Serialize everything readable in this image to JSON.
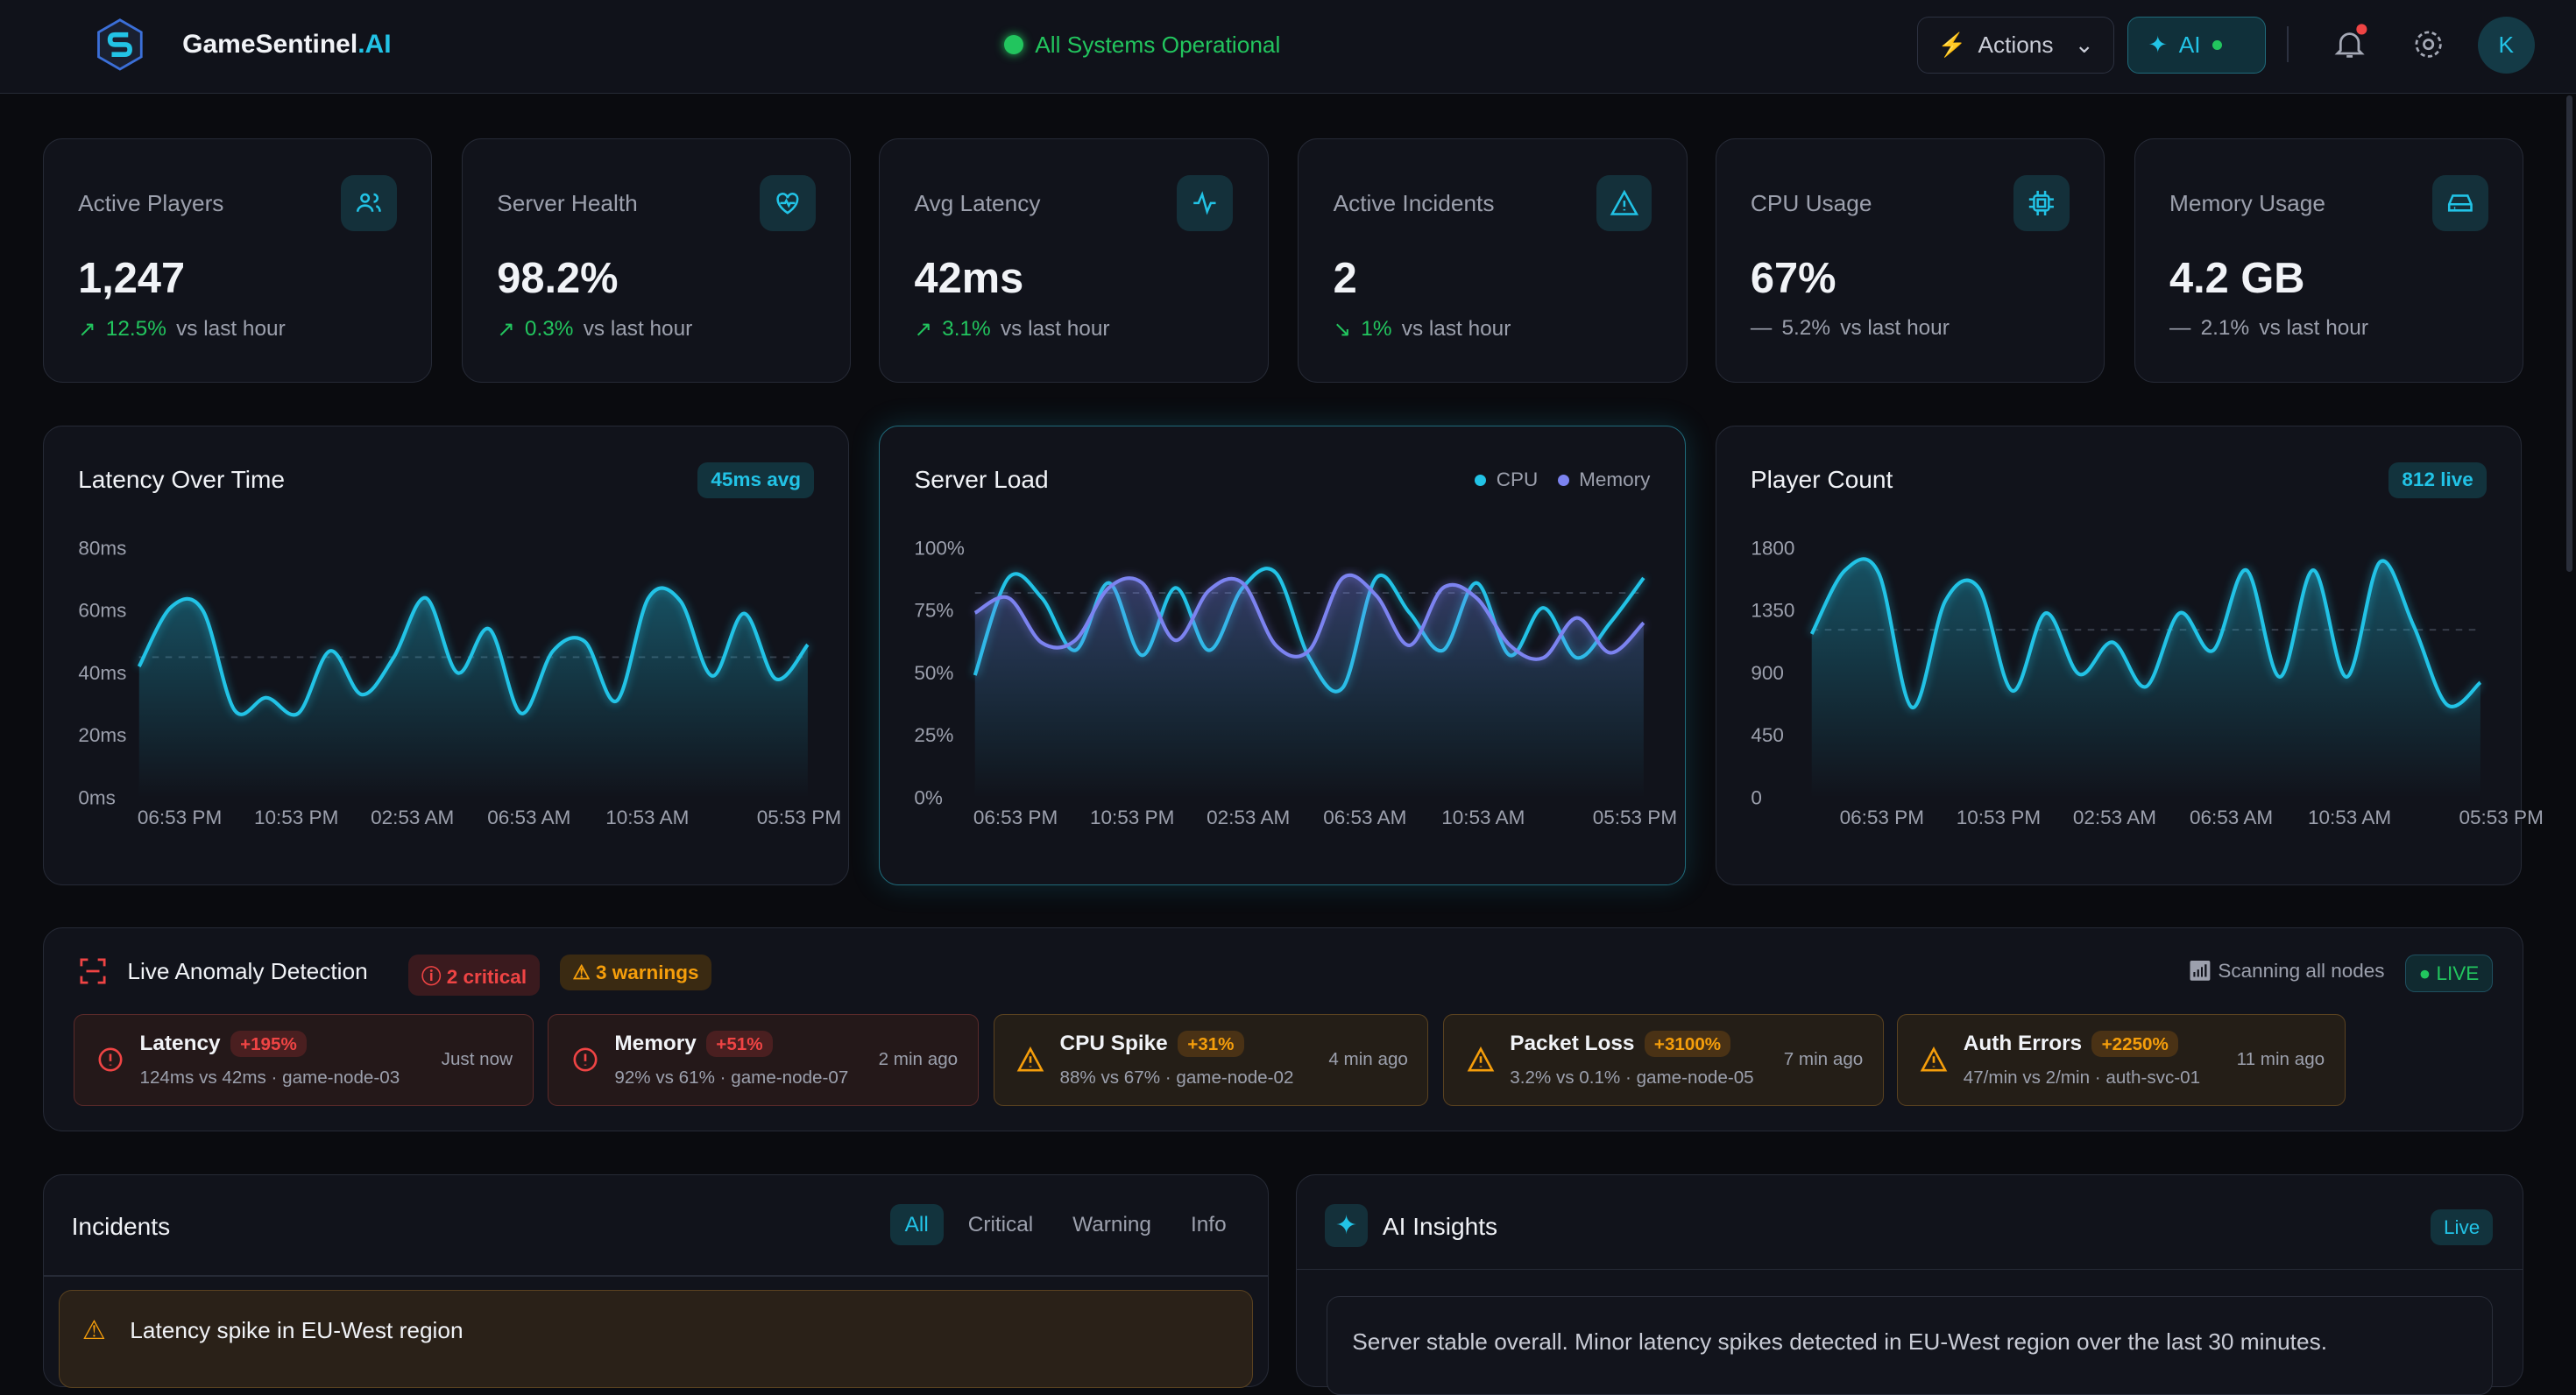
{
  "header": {
    "brand_main": "GameSentinel",
    "brand_suffix": ".AI",
    "status": "All Systems Operational",
    "actions_label": "Actions",
    "ai_label": "AI",
    "avatar_initial": "K"
  },
  "stats": [
    {
      "label": "Active Players",
      "value": "1,247",
      "change": "12.5%",
      "trend": "up",
      "suffix": "vs last hour",
      "icon": "users-icon"
    },
    {
      "label": "Server Health",
      "value": "98.2%",
      "change": "0.3%",
      "trend": "up",
      "suffix": "vs last hour",
      "icon": "heart-pulse-icon"
    },
    {
      "label": "Avg Latency",
      "value": "42ms",
      "change": "3.1%",
      "trend": "up",
      "suffix": "vs last hour",
      "icon": "activity-icon"
    },
    {
      "label": "Active Incidents",
      "value": "2",
      "change": "1%",
      "trend": "down",
      "suffix": "vs last hour",
      "icon": "alert-triangle-icon"
    },
    {
      "label": "CPU Usage",
      "value": "67%",
      "change": "5.2%",
      "trend": "flat",
      "suffix": "vs last hour",
      "icon": "cpu-icon"
    },
    {
      "label": "Memory Usage",
      "value": "4.2 GB",
      "change": "2.1%",
      "trend": "flat",
      "suffix": "vs last hour",
      "icon": "hard-drive-icon"
    }
  ],
  "chart_data": [
    {
      "type": "area",
      "title": "Latency Over Time",
      "badge": "45ms avg",
      "ylim": [
        0,
        80
      ],
      "yticks": [
        "0ms",
        "20ms",
        "40ms",
        "60ms",
        "80ms"
      ],
      "ytick_values": [
        0,
        20,
        40,
        60,
        80
      ],
      "xticks": [
        "06:53 PM",
        "10:53 PM",
        "02:53 AM",
        "06:53 AM",
        "10:53 AM",
        "05:53 PM"
      ],
      "average": 45,
      "colors": [
        "#22c3e6"
      ],
      "series": [
        {
          "values": [
            42,
            61,
            60,
            28,
            32,
            27,
            47,
            33,
            45,
            64,
            40,
            54,
            27,
            47,
            50,
            31,
            64,
            63,
            39,
            59,
            38,
            49
          ]
        }
      ]
    },
    {
      "type": "line",
      "title": "Server Load",
      "ylim": [
        0,
        100
      ],
      "yticks": [
        "0%",
        "25%",
        "50%",
        "75%",
        "100%"
      ],
      "ytick_values": [
        0,
        25,
        50,
        75,
        100
      ],
      "xticks": [
        "06:53 PM",
        "10:53 PM",
        "02:53 AM",
        "06:53 AM",
        "10:53 AM",
        "05:53 PM"
      ],
      "average": 82,
      "colors": [
        "#22c3e6",
        "#7c83f0"
      ],
      "series": [
        {
          "name": "CPU",
          "values": [
            49,
            88,
            80,
            59,
            86,
            57,
            84,
            59,
            84,
            90,
            56,
            44,
            88,
            74,
            59,
            86,
            57,
            76,
            56,
            70,
            88
          ]
        },
        {
          "name": "Memory",
          "values": [
            74,
            80,
            62,
            63,
            84,
            86,
            63,
            83,
            86,
            61,
            59,
            88,
            81,
            61,
            84,
            80,
            61,
            56,
            72,
            58,
            70
          ]
        }
      ]
    },
    {
      "type": "area",
      "title": "Player Count",
      "badge": "812 live",
      "ylim": [
        0,
        1800
      ],
      "yticks": [
        "0",
        "450",
        "900",
        "1350",
        "1800"
      ],
      "ytick_values": [
        0,
        450,
        900,
        1350,
        1800
      ],
      "xticks": [
        "06:53 PM",
        "10:53 PM",
        "02:53 AM",
        "06:53 AM",
        "10:53 AM",
        "05:53 PM"
      ],
      "average": 1210,
      "colors": [
        "#22c3e6"
      ],
      "series": [
        {
          "values": [
            1180,
            1640,
            1620,
            650,
            1420,
            1510,
            770,
            1330,
            890,
            1120,
            800,
            1330,
            1060,
            1640,
            870,
            1640,
            870,
            1700,
            1240,
            670,
            830
          ]
        }
      ]
    }
  ],
  "anomaly": {
    "title": "Live Anomaly Detection",
    "critical": "2 critical",
    "warnings": "3 warnings",
    "scanning": "Scanning all nodes",
    "live": "LIVE",
    "items": [
      {
        "name": "Latency",
        "pct": "+195%",
        "detail": "124ms  vs 42ms · game-node-03",
        "time": "Just now",
        "severity": "critical"
      },
      {
        "name": "Memory",
        "pct": "+51%",
        "detail": "92%  vs 61% · game-node-07",
        "time": "2 min ago",
        "severity": "critical"
      },
      {
        "name": "CPU Spike",
        "pct": "+31%",
        "detail": "88%  vs 67% · game-node-02",
        "time": "4 min ago",
        "severity": "warning"
      },
      {
        "name": "Packet Loss",
        "pct": "+3100%",
        "detail": "3.2%  vs 0.1% · game-node-05",
        "time": "7 min ago",
        "severity": "warning"
      },
      {
        "name": "Auth Errors",
        "pct": "+2250%",
        "detail": "47/min  vs 2/min · auth-svc-01",
        "time": "11 min ago",
        "severity": "warning"
      }
    ]
  },
  "incidents": {
    "title": "Incidents",
    "tabs": [
      "All",
      "Critical",
      "Warning",
      "Info"
    ],
    "items": [
      {
        "title": "Latency spike in EU-West region"
      }
    ]
  },
  "insights": {
    "title": "AI Insights",
    "badge": "Live",
    "text": "Server stable overall. Minor latency spikes detected in EU-West region over the last 30 minutes."
  }
}
